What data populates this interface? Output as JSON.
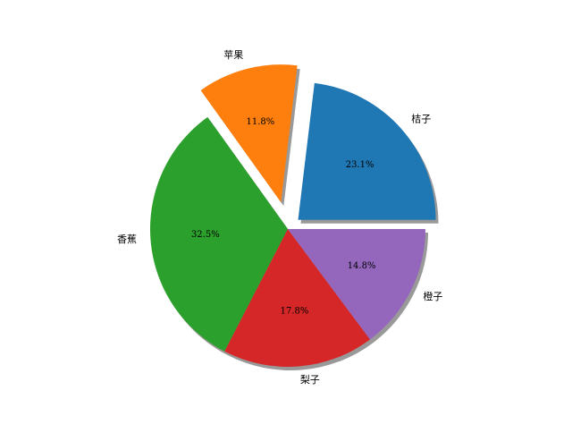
{
  "chart_data": {
    "type": "pie",
    "categories": [
      "桔子",
      "苹果",
      "香蕉",
      "梨子",
      "橙子"
    ],
    "values": [
      23.1,
      11.8,
      32.5,
      17.8,
      14.8
    ],
    "value_labels": [
      "23.1%",
      "11.8%",
      "32.5%",
      "17.8%",
      "14.8%"
    ],
    "colors": [
      "#1f77b4",
      "#ff7f0e",
      "#2ca02c",
      "#d62728",
      "#9467bd"
    ],
    "explode": [
      0.1,
      0.2,
      0,
      0,
      0
    ],
    "shadow": true
  }
}
